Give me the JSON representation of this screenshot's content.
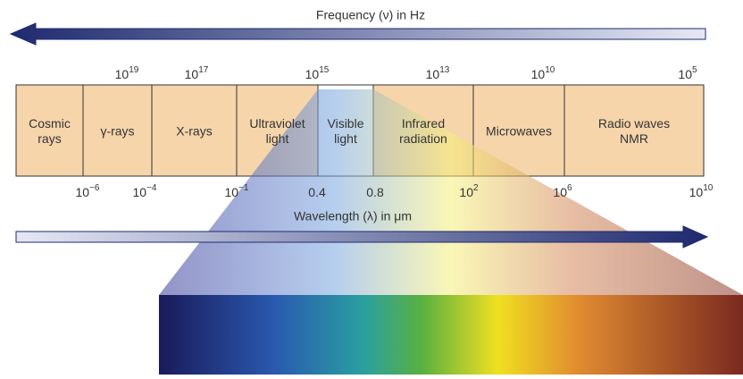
{
  "title_frequency": "Frequency (ν) in Hz",
  "title_wavelength": "Wavelength (λ) in μm",
  "frequency_labels": [
    {
      "base": "10",
      "exp": "19"
    },
    {
      "base": "10",
      "exp": "17"
    },
    {
      "base": "10",
      "exp": "15"
    },
    {
      "base": "10",
      "exp": "13"
    },
    {
      "base": "10",
      "exp": "10"
    },
    {
      "base": "10",
      "exp": "5"
    }
  ],
  "bands": [
    {
      "lines": [
        "Cosmic",
        "rays"
      ]
    },
    {
      "lines": [
        "γ-rays"
      ]
    },
    {
      "lines": [
        "X-rays"
      ]
    },
    {
      "lines": [
        "Ultraviolet",
        "light"
      ]
    },
    {
      "lines": [
        "Visible",
        "light"
      ]
    },
    {
      "lines": [
        "Infrared",
        "radiation"
      ]
    },
    {
      "lines": [
        "Microwaves"
      ]
    },
    {
      "lines": [
        "Radio waves",
        "NMR"
      ]
    }
  ],
  "wavelength_labels": [
    {
      "base": "10",
      "exp": "−6"
    },
    {
      "base": "10",
      "exp": "−4"
    },
    {
      "base": "10",
      "exp": "−1"
    },
    {
      "base": "0.4"
    },
    {
      "base": "0.8"
    },
    {
      "base": "10",
      "exp": "2"
    },
    {
      "base": "10",
      "exp": "6"
    },
    {
      "base": "10",
      "exp": "10"
    }
  ]
}
